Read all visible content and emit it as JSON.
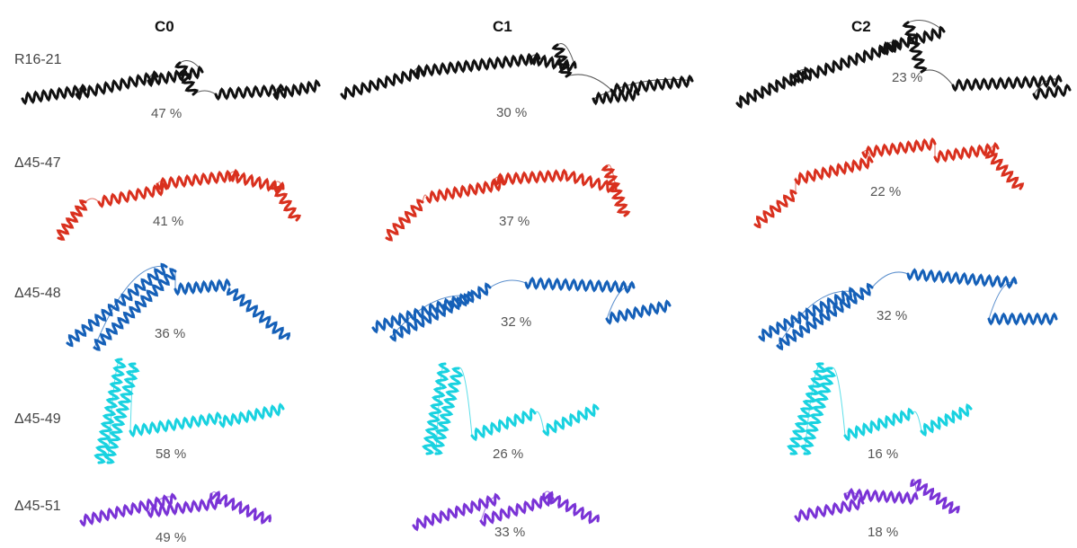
{
  "columns": [
    "C0",
    "C1",
    "C2"
  ],
  "rows": [
    {
      "label": "R16-21",
      "color": "#111111",
      "percents": [
        "47 %",
        "30 %",
        "23 %"
      ]
    },
    {
      "label": "Δ45-47",
      "color": "#d9301e",
      "percents": [
        "41 %",
        "37 %",
        "22 %"
      ]
    },
    {
      "label": "Δ45-48",
      "color": "#1560b8",
      "percents": [
        "36 %",
        "32 %",
        "32 %"
      ]
    },
    {
      "label": "Δ45-49",
      "color": "#19d2e0",
      "percents": [
        "58 %",
        "26 %",
        "16 %"
      ]
    },
    {
      "label": "Δ45-51",
      "color": "#7a33d6",
      "percents": [
        "49 %",
        "33 %",
        "18 %"
      ]
    }
  ]
}
